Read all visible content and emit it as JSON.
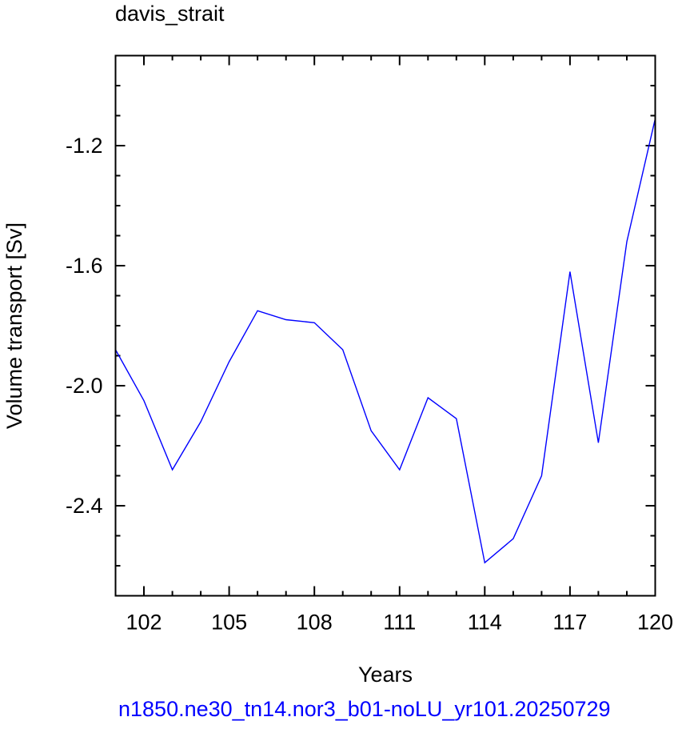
{
  "chart_data": {
    "type": "line",
    "title": "davis_strait",
    "xlabel": "Years",
    "ylabel": "Volume transport [Sv]",
    "xlim": [
      101,
      120
    ],
    "ylim": [
      -2.7,
      -0.9
    ],
    "xticks": [
      102,
      105,
      108,
      111,
      114,
      117,
      120
    ],
    "yticks": [
      -1.2,
      -1.6,
      -2.0,
      -2.4
    ],
    "series": [
      {
        "color": "#0000ff",
        "x": [
          101,
          102,
          103,
          104,
          105,
          106,
          107,
          108,
          109,
          110,
          111,
          112,
          113,
          114,
          115,
          116,
          117,
          118,
          119,
          120
        ],
        "values": [
          -1.88,
          -2.05,
          -2.28,
          -2.12,
          -1.92,
          -1.75,
          -1.78,
          -1.79,
          -1.88,
          -2.15,
          -2.28,
          -2.04,
          -2.11,
          -2.59,
          -2.51,
          -2.3,
          -1.62,
          -2.19,
          -1.52,
          -1.11
        ]
      }
    ],
    "grid": false,
    "legend": "none"
  },
  "footer": {
    "text": "n1850.ne30_tn14.nor3_b01-noLU_yr101.20250729",
    "color": "#0000ff"
  }
}
